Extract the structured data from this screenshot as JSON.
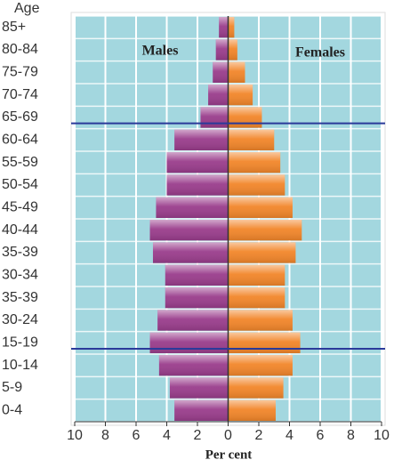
{
  "chart_data": {
    "type": "population-pyramid",
    "y_label": "Age",
    "x_label": "Per cent",
    "categories": [
      "85+",
      "80-84",
      "75-79",
      "70-74",
      "65-69",
      "60-64",
      "55-59",
      "50-54",
      "45-49",
      "40-44",
      "35-39",
      "30-34",
      "35-39",
      "30-24",
      "15-19",
      "10-14",
      "5-9",
      "0-4"
    ],
    "series": [
      {
        "name": "Males",
        "color": "#9a3d8c",
        "values": [
          -0.6,
          -0.8,
          -1.0,
          -1.3,
          -1.8,
          -3.5,
          -4.0,
          -4.0,
          -4.7,
          -5.1,
          -4.9,
          -4.1,
          -4.1,
          -4.6,
          -5.1,
          -4.5,
          -3.8,
          -3.5
        ]
      },
      {
        "name": "Females",
        "color": "#f2862a",
        "values": [
          0.4,
          0.6,
          1.1,
          1.6,
          2.2,
          3.0,
          3.4,
          3.7,
          4.2,
          4.8,
          4.4,
          3.7,
          3.7,
          4.2,
          4.7,
          4.2,
          3.6,
          3.1
        ]
      }
    ],
    "xlim": [
      -10,
      10
    ],
    "xticks": [
      {
        "value": -10,
        "label": "10"
      },
      {
        "value": -8,
        "label": "8"
      },
      {
        "value": -6,
        "label": "6"
      },
      {
        "value": -4,
        "label": "4"
      },
      {
        "value": -2,
        "label": "2"
      },
      0,
      2,
      4,
      6,
      8,
      10
    ],
    "grid": true,
    "background": "#a3d7df"
  }
}
